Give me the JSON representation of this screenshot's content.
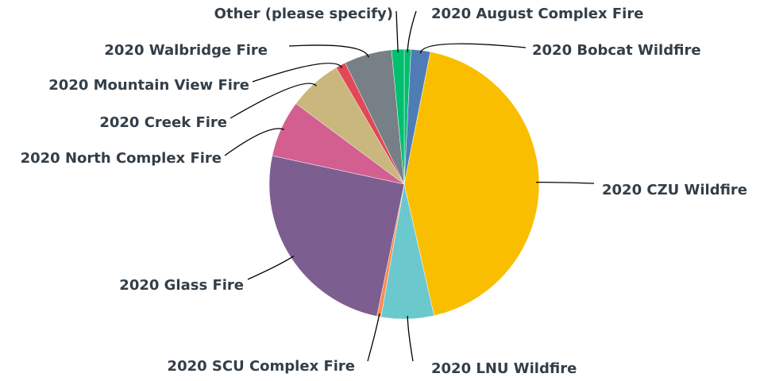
{
  "chart_data": {
    "type": "pie",
    "categories": [
      "2020 August Complex Fire",
      "2020 Bobcat Wildfire",
      "2020 CZU Wildfire",
      "2020 LNU Wildfire",
      "2020 SCU Complex Fire",
      "2020 Glass Fire",
      "2020 North Complex Fire",
      "2020 Creek Fire",
      "2020 Mountain View Fire",
      "2020 Walbridge Fire",
      "Other (please specify)"
    ],
    "values": [
      0.8,
      2.3,
      43.3,
      6.3,
      0.5,
      25.1,
      6.8,
      6.4,
      1.2,
      5.7,
      1.5
    ],
    "colors": [
      "#00bf6f",
      "#507cb6",
      "#f9be00",
      "#6bc8cd",
      "#ff8b4f",
      "#7d5e90",
      "#d25f90",
      "#c9b77d",
      "#e04856",
      "#768086",
      "#00bf6f"
    ]
  }
}
